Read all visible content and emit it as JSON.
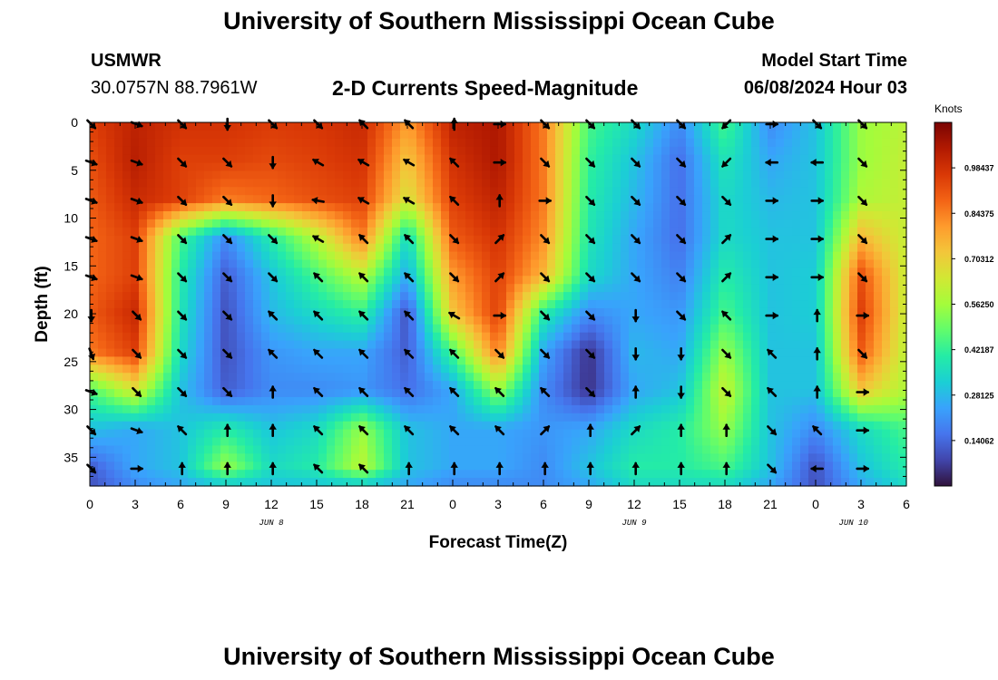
{
  "header": {
    "title": "University of Southern Mississippi Ocean Cube",
    "station": "USMWR",
    "coordinates": "30.0757N  88.7961W",
    "subtitle": "2-D Currents Speed-Magnitude",
    "model_start_label": "Model Start Time",
    "model_start_value": "06/08/2024 Hour 03",
    "footer_title": "University of Southern Mississippi Ocean Cube"
  },
  "chart_data": {
    "type": "heatmap",
    "title": "2-D Currents Speed-Magnitude",
    "xlabel": "Forecast Time(Z)",
    "ylabel": "Depth (ft)",
    "x_ticks": [
      "0",
      "3",
      "6",
      "9",
      "12",
      "15",
      "18",
      "21",
      "0",
      "3",
      "6",
      "9",
      "12",
      "15",
      "18",
      "21",
      "0",
      "3",
      "6"
    ],
    "x_range_hours": [
      0,
      54
    ],
    "day_labels": [
      {
        "label": "JUN 8",
        "hour": 12
      },
      {
        "label": "JUN 9",
        "hour": 36
      },
      {
        "label": "JUN 10",
        "hour": 50.5
      }
    ],
    "y_ticks": [
      0,
      5,
      10,
      15,
      20,
      25,
      30,
      35
    ],
    "y_range_ft": [
      0,
      38
    ],
    "colorbar": {
      "label": "Knots",
      "ticks": [
        "0.98437",
        "0.84375",
        "0.70312",
        "0.56250",
        "0.42187",
        "0.28125",
        "0.14062"
      ],
      "tick_values": [
        0.98437,
        0.84375,
        0.70312,
        0.5625,
        0.42187,
        0.28125,
        0.14062
      ],
      "range": [
        0.0,
        1.125
      ]
    },
    "colors": [
      "#30123b",
      "#4145ab",
      "#4675ed",
      "#39a2fc",
      "#1bcfd4",
      "#24eca6",
      "#61fc6c",
      "#a4fc3b",
      "#d1e834",
      "#f3c63a",
      "#fe9b2d",
      "#f36315",
      "#d93806",
      "#b11901",
      "#7a0403"
    ],
    "time_hours": [
      0,
      3,
      6,
      9,
      12,
      15,
      18,
      21,
      24,
      27,
      30,
      33,
      36,
      39,
      42,
      45,
      48,
      51,
      54
    ],
    "depths_ft": [
      0,
      4,
      8,
      12,
      16,
      20,
      24,
      28,
      32,
      36,
      38
    ],
    "speed_knots": [
      [
        0.95,
        1.02,
        0.98,
        0.98,
        0.96,
        0.97,
        1.0,
        0.8,
        1.02,
        1.05,
        0.85,
        0.45,
        0.35,
        0.2,
        0.45,
        0.2,
        0.3,
        0.55,
        0.6
      ],
      [
        0.92,
        1.03,
        0.95,
        0.95,
        0.93,
        0.95,
        0.98,
        0.72,
        0.98,
        1.05,
        0.85,
        0.42,
        0.3,
        0.15,
        0.38,
        0.25,
        0.3,
        0.55,
        0.62
      ],
      [
        0.9,
        1.0,
        0.95,
        0.85,
        0.88,
        0.92,
        0.95,
        0.65,
        0.95,
        1.02,
        0.85,
        0.4,
        0.28,
        0.15,
        0.35,
        0.28,
        0.3,
        0.58,
        0.62
      ],
      [
        0.88,
        0.95,
        0.45,
        0.2,
        0.4,
        0.6,
        0.85,
        0.35,
        0.9,
        0.98,
        0.82,
        0.38,
        0.25,
        0.15,
        0.35,
        0.3,
        0.3,
        0.75,
        0.62
      ],
      [
        0.88,
        0.95,
        0.4,
        0.12,
        0.3,
        0.45,
        0.6,
        0.25,
        0.8,
        0.95,
        0.75,
        0.35,
        0.25,
        0.18,
        0.4,
        0.3,
        0.32,
        0.92,
        0.62
      ],
      [
        0.9,
        1.0,
        0.38,
        0.1,
        0.28,
        0.35,
        0.42,
        0.1,
        0.72,
        0.95,
        0.4,
        0.2,
        0.25,
        0.22,
        0.45,
        0.3,
        0.32,
        0.95,
        0.62
      ],
      [
        0.85,
        0.95,
        0.35,
        0.1,
        0.22,
        0.25,
        0.25,
        0.12,
        0.45,
        0.85,
        0.25,
        0.05,
        0.28,
        0.25,
        0.55,
        0.3,
        0.3,
        0.9,
        0.6
      ],
      [
        0.45,
        0.65,
        0.3,
        0.12,
        0.2,
        0.2,
        0.22,
        0.15,
        0.25,
        0.55,
        0.2,
        0.05,
        0.25,
        0.3,
        0.62,
        0.3,
        0.3,
        0.72,
        0.58
      ],
      [
        0.3,
        0.25,
        0.3,
        0.4,
        0.3,
        0.35,
        0.55,
        0.3,
        0.25,
        0.25,
        0.22,
        0.25,
        0.35,
        0.4,
        0.55,
        0.3,
        0.2,
        0.35,
        0.45
      ],
      [
        0.12,
        0.25,
        0.3,
        0.55,
        0.35,
        0.4,
        0.6,
        0.3,
        0.25,
        0.25,
        0.2,
        0.3,
        0.4,
        0.4,
        0.45,
        0.3,
        0.1,
        0.3,
        0.4
      ],
      [
        0.1,
        0.2,
        0.25,
        0.3,
        0.3,
        0.3,
        0.3,
        0.25,
        0.2,
        0.2,
        0.2,
        0.25,
        0.35,
        0.35,
        0.35,
        0.25,
        0.1,
        0.25,
        0.35
      ]
    ],
    "vector_rows_ft": [
      0,
      4,
      8,
      12,
      16,
      20,
      24,
      28,
      32,
      36
    ],
    "vector_directions_deg": [
      [
        135,
        110,
        135,
        180,
        135,
        135,
        315,
        315,
        0,
        90,
        135,
        135,
        135,
        135,
        225,
        90,
        135,
        135
      ],
      [
        110,
        110,
        135,
        135,
        180,
        300,
        300,
        300,
        315,
        90,
        135,
        135,
        135,
        135,
        225,
        270,
        270,
        135
      ],
      [
        110,
        110,
        135,
        135,
        180,
        280,
        300,
        300,
        315,
        0,
        90,
        135,
        135,
        135,
        135,
        90,
        90,
        135
      ],
      [
        110,
        110,
        135,
        135,
        135,
        300,
        315,
        315,
        135,
        45,
        135,
        135,
        135,
        135,
        45,
        90,
        90,
        135
      ],
      [
        110,
        110,
        135,
        135,
        135,
        315,
        315,
        315,
        135,
        45,
        135,
        135,
        135,
        135,
        45,
        90,
        90,
        135
      ],
      [
        180,
        135,
        135,
        135,
        315,
        315,
        315,
        315,
        300,
        90,
        135,
        135,
        180,
        135,
        315,
        90,
        0,
        90
      ],
      [
        160,
        135,
        135,
        135,
        315,
        315,
        315,
        315,
        315,
        135,
        135,
        135,
        180,
        180,
        135,
        315,
        0,
        135
      ],
      [
        110,
        135,
        135,
        135,
        0,
        315,
        315,
        315,
        315,
        315,
        315,
        135,
        0,
        180,
        135,
        315,
        0,
        90
      ],
      [
        135,
        110,
        315,
        0,
        0,
        315,
        315,
        315,
        315,
        315,
        45,
        0,
        45,
        0,
        0,
        135,
        315,
        90
      ],
      [
        135,
        90,
        0,
        0,
        0,
        315,
        315,
        0,
        0,
        0,
        0,
        0,
        0,
        0,
        0,
        135,
        270,
        90
      ]
    ]
  }
}
